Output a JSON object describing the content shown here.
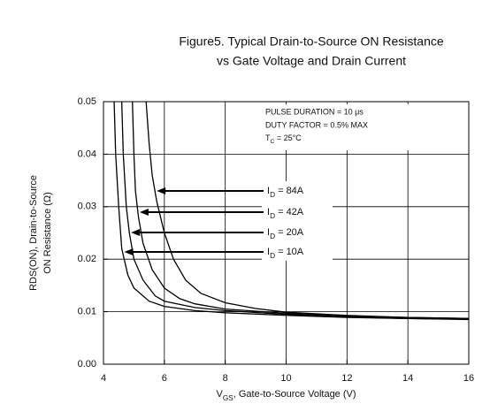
{
  "chart_data": {
    "type": "line",
    "title": [
      "Figure5.  Typical Drain-to-Source ON Resistance",
      "vs Gate Voltage and Drain Current"
    ],
    "xlabel": [
      "V",
      "GS",
      ", Gate-to-Source Voltage (V)"
    ],
    "ylabel": [
      "RDS(ON), Drain-to-Source",
      "ON Resistance (Ω)"
    ],
    "annotations": [
      "PULSE DURATION = 10 μs",
      "DUTY FACTOR = 0.5% MAX",
      [
        "T",
        "C",
        " = 25°C"
      ]
    ],
    "xlim": [
      4,
      16
    ],
    "xticks": [
      4,
      6,
      8,
      10,
      12,
      14,
      16
    ],
    "ylim": [
      0,
      0.05
    ],
    "yticks": [
      {
        "value": 0,
        "label": "0.00"
      },
      0.01,
      0.02,
      0.03,
      0.04,
      0.05
    ],
    "grid": true,
    "series": [
      {
        "name": [
          "I",
          "D",
          " = 84A"
        ],
        "color": "#000000",
        "x": [
          5.4,
          5.5,
          5.6,
          5.75,
          6,
          6.3,
          6.7,
          7.2,
          8,
          9,
          10,
          12,
          14,
          16
        ],
        "values": [
          0.05,
          0.042,
          0.036,
          0.031,
          0.025,
          0.02,
          0.016,
          0.0135,
          0.0117,
          0.0106,
          0.0099,
          0.0093,
          0.0089,
          0.0087
        ]
      },
      {
        "name": [
          "I",
          "D",
          " = 42A"
        ],
        "color": "#000000",
        "x": [
          4.95,
          5,
          5.05,
          5.15,
          5.3,
          5.6,
          6,
          6.5,
          7,
          8,
          10,
          12,
          14,
          16
        ],
        "values": [
          0.05,
          0.04,
          0.033,
          0.028,
          0.023,
          0.018,
          0.0145,
          0.0125,
          0.0115,
          0.0105,
          0.0097,
          0.0092,
          0.0089,
          0.0087
        ]
      },
      {
        "name": [
          "I",
          "D",
          " = 20A"
        ],
        "color": "#000000",
        "x": [
          4.6,
          4.65,
          4.75,
          4.85,
          5,
          5.3,
          5.7,
          6,
          7,
          8,
          10,
          12,
          14,
          16
        ],
        "values": [
          0.05,
          0.04,
          0.03,
          0.025,
          0.02,
          0.016,
          0.013,
          0.012,
          0.0108,
          0.0102,
          0.0095,
          0.009,
          0.0087,
          0.0086
        ]
      },
      {
        "name": [
          "I",
          "D",
          " = 10A"
        ],
        "color": "#000000",
        "x": [
          4.35,
          4.4,
          4.5,
          4.6,
          4.8,
          5,
          5.5,
          6,
          7,
          8,
          10,
          12,
          14,
          16
        ],
        "values": [
          0.05,
          0.04,
          0.03,
          0.022,
          0.017,
          0.0145,
          0.012,
          0.011,
          0.0102,
          0.0098,
          0.0093,
          0.0089,
          0.0087,
          0.0085
        ]
      }
    ]
  }
}
